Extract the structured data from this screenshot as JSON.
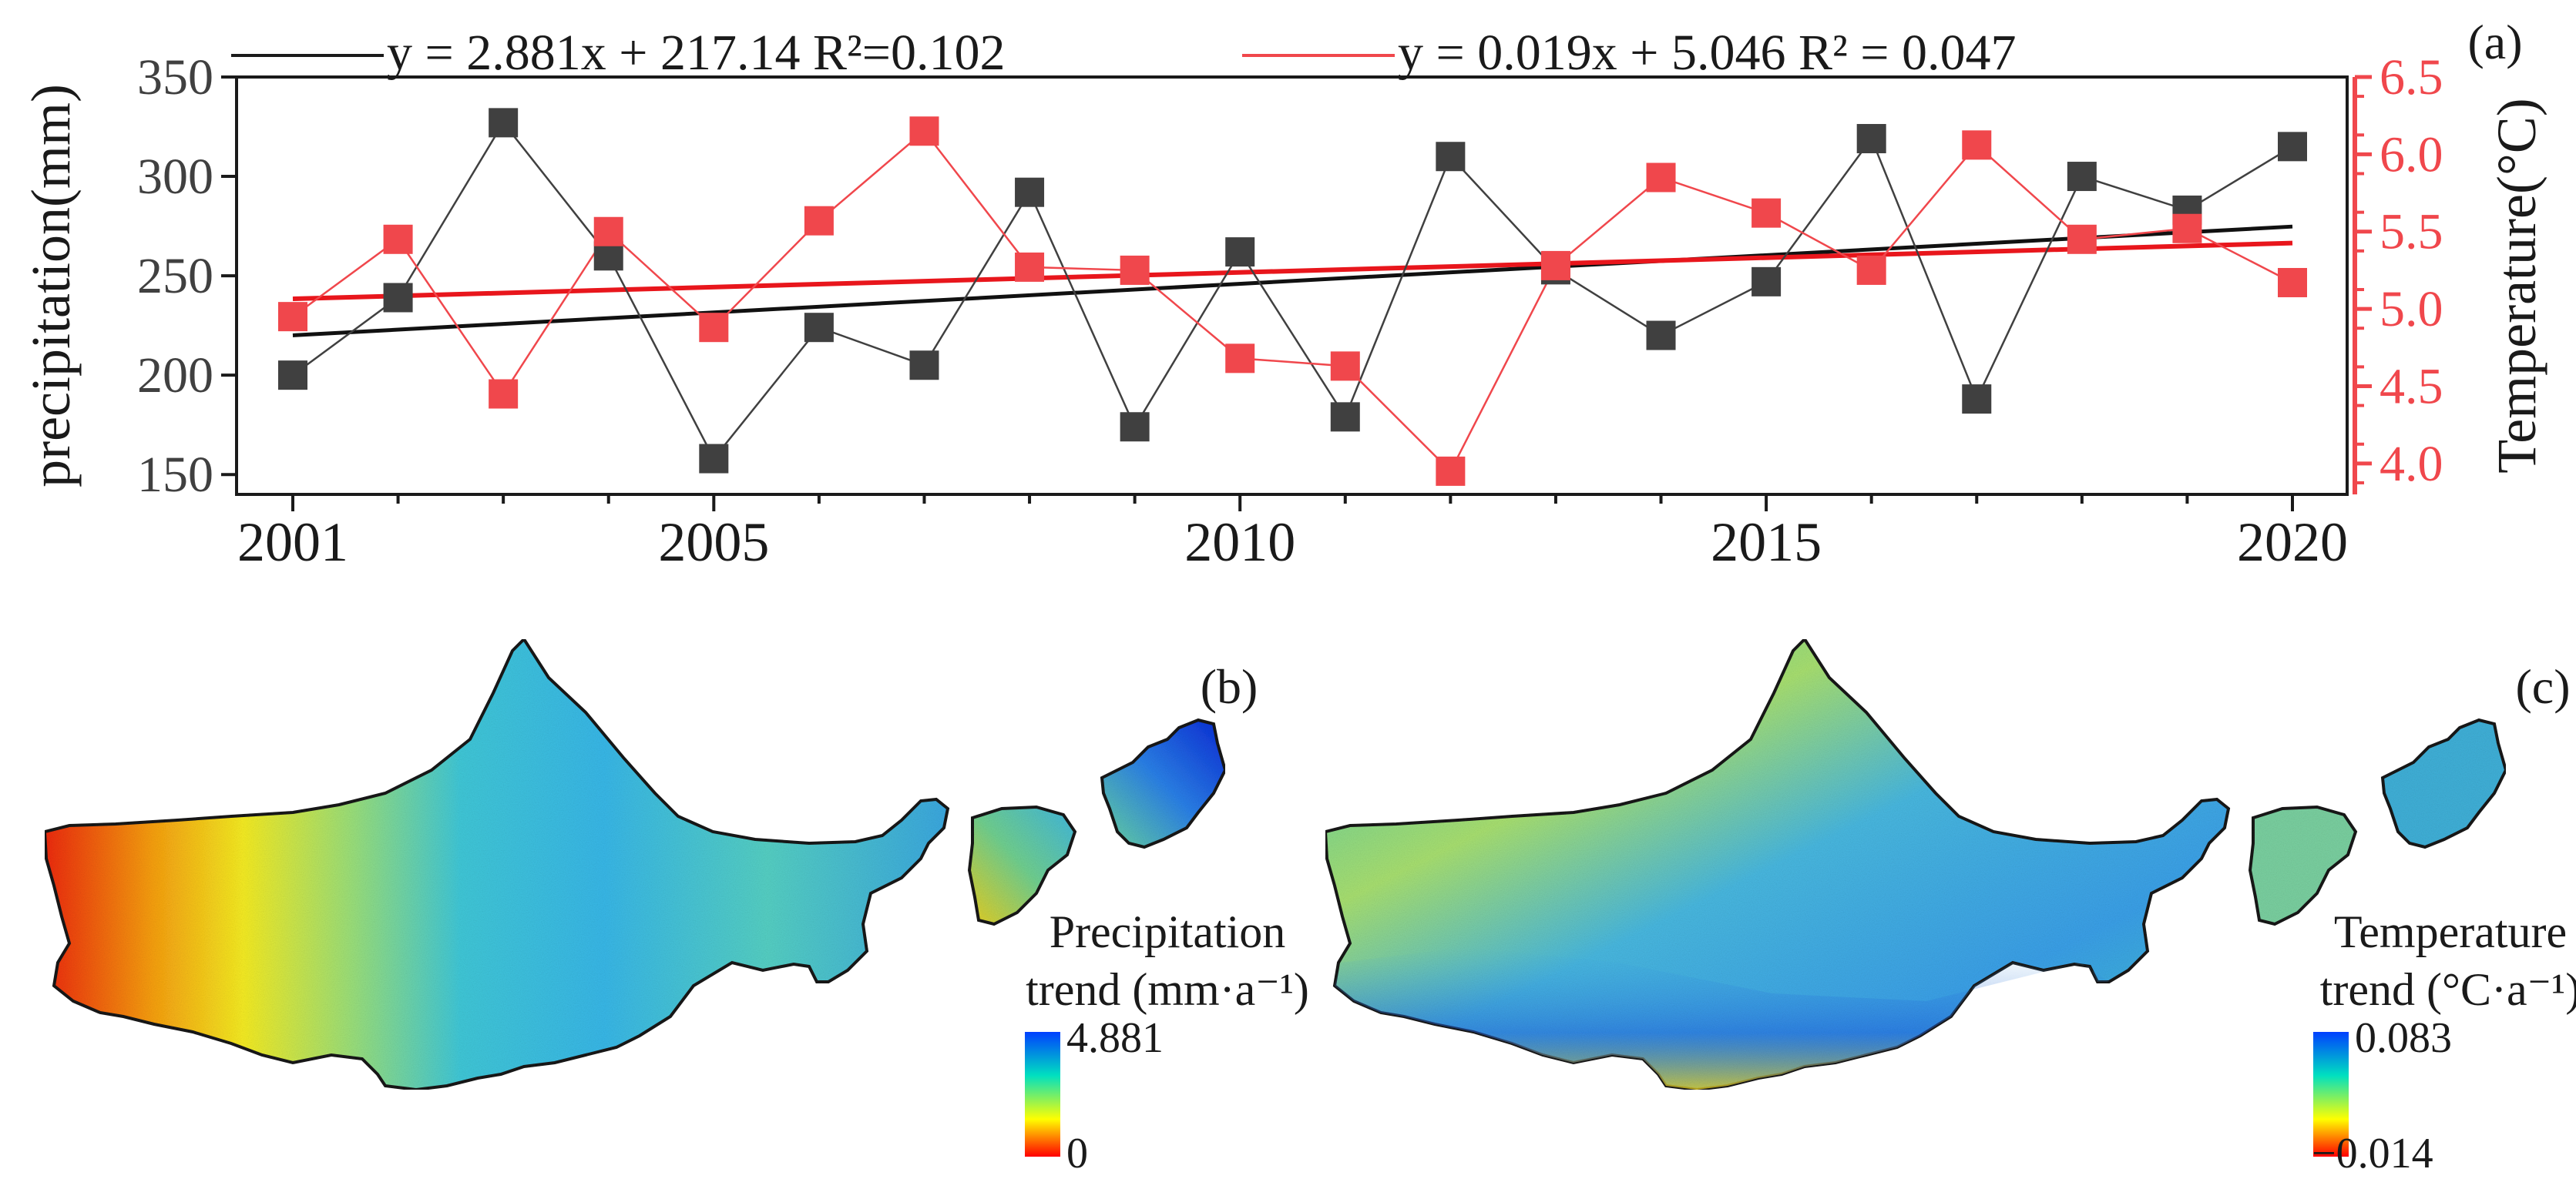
{
  "chart_data": [
    {
      "panel": "(a)",
      "type": "line",
      "x": [
        2001,
        2002,
        2003,
        2004,
        2005,
        2006,
        2007,
        2008,
        2009,
        2010,
        2011,
        2012,
        2013,
        2014,
        2015,
        2016,
        2017,
        2018,
        2019,
        2020
      ],
      "xticks": [
        2001,
        2005,
        2010,
        2015,
        2020
      ],
      "xlim": [
        2001,
        2020
      ],
      "series": [
        {
          "name": "Precipitation",
          "axis": "left",
          "color": "#404040",
          "values": [
            200,
            239,
            327,
            260,
            158,
            224,
            205,
            292,
            174,
            262,
            179,
            310,
            253,
            220,
            247,
            319,
            188,
            300,
            283,
            315
          ],
          "fit": {
            "slope": 2.881,
            "intercept": 217.14,
            "r2": 0.102
          },
          "legend_label": "y = 2.881x + 217.14 R²=0.102"
        },
        {
          "name": "Temperature",
          "axis": "right",
          "color": "#f0474c",
          "values": [
            4.95,
            5.45,
            4.45,
            5.5,
            4.88,
            5.57,
            6.15,
            5.27,
            5.25,
            4.68,
            4.63,
            3.95,
            5.28,
            5.85,
            5.62,
            5.25,
            6.06,
            5.45,
            5.52,
            5.17
          ],
          "fit": {
            "slope": 0.019,
            "intercept": 5.046,
            "r2": 0.047
          },
          "legend_label": "y = 0.019x + 5.046 R² = 0.047"
        }
      ],
      "left_axis": {
        "label": "precipitation(mm)",
        "ylim": [
          140,
          350
        ],
        "ticks": [
          150,
          200,
          250,
          300,
          350
        ]
      },
      "right_axis": {
        "label": "Temperature(°C)",
        "ylim": [
          3.8,
          6.5
        ],
        "ticks": [
          4.0,
          4.5,
          5.0,
          5.5,
          6.0,
          6.5
        ],
        "color": "#f0474c"
      },
      "legend_placement": "top"
    },
    {
      "panel": "(b)",
      "type": "heatmap",
      "subject": "precipitation trend map",
      "colorbar": {
        "title_line1": "Precipitation",
        "title_line2": "trend (mm·a⁻¹)",
        "max_label": "4.881",
        "min_label": "0",
        "range": [
          0,
          4.881
        ],
        "colors": [
          "#ff0000",
          "#ffff00",
          "#00e0c0",
          "#0040ff"
        ]
      }
    },
    {
      "panel": "(c)",
      "type": "heatmap",
      "subject": "temperature trend map",
      "colorbar": {
        "title_line1": "Temperature",
        "title_line2": "trend (°C·a⁻¹)",
        "max_label": "0.083",
        "min_label": "−0.014",
        "range": [
          -0.014,
          0.083
        ],
        "colors": [
          "#ff0000",
          "#ffff00",
          "#00e0c0",
          "#0040ff"
        ]
      }
    }
  ]
}
